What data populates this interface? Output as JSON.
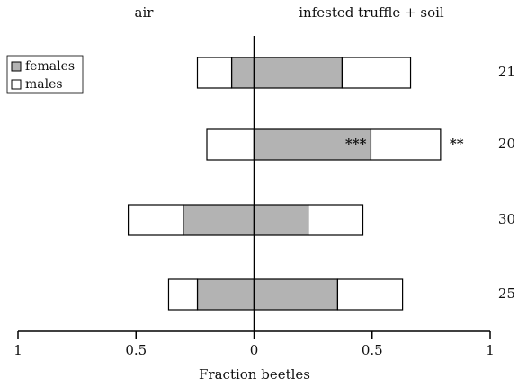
{
  "chart_data": {
    "type": "diverging_bar",
    "sides": [
      "air",
      "infested truffle + soil"
    ],
    "xlabel": "Fraction beetles",
    "categories": [
      "21",
      "20",
      "30",
      "25"
    ],
    "series": [
      {
        "name": "females",
        "color": "#b3b3b3",
        "air": [
          -0.095,
          0,
          -0.3,
          -0.24
        ],
        "infested": [
          0.373,
          0.495,
          0.229,
          0.354
        ],
        "annotations": [
          null,
          "***",
          null,
          null
        ]
      },
      {
        "name": "males",
        "color": "#ffffff",
        "air": [
          -0.145,
          -0.2,
          -0.233,
          -0.122
        ],
        "infested": [
          0.29,
          0.295,
          0.232,
          0.275
        ],
        "annotations": [
          null,
          "**",
          null,
          null
        ]
      }
    ],
    "xlim": [
      -1,
      1
    ],
    "xticks": [
      {
        "value": -1,
        "label": "1"
      },
      {
        "value": -0.5,
        "label": "0.5"
      },
      0,
      0.5,
      1
    ],
    "legend": "upper left"
  }
}
